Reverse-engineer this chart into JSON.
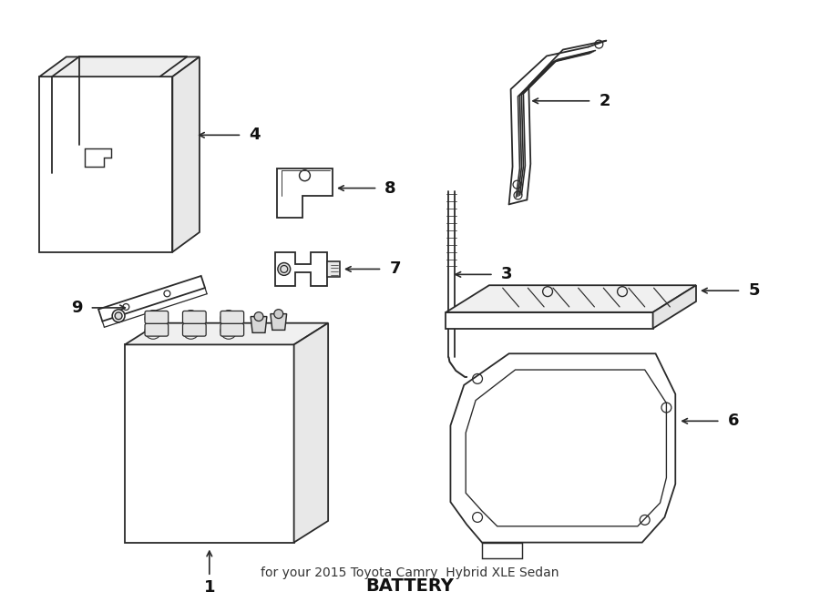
{
  "title": "BATTERY",
  "subtitle": "for your 2015 Toyota Camry  Hybrid XLE Sedan",
  "bg_color": "#ffffff",
  "line_color": "#2a2a2a",
  "text_color": "#111111",
  "figsize": [
    9.0,
    6.61
  ],
  "dpi": 100,
  "lw": 1.3,
  "label_fs": 13
}
